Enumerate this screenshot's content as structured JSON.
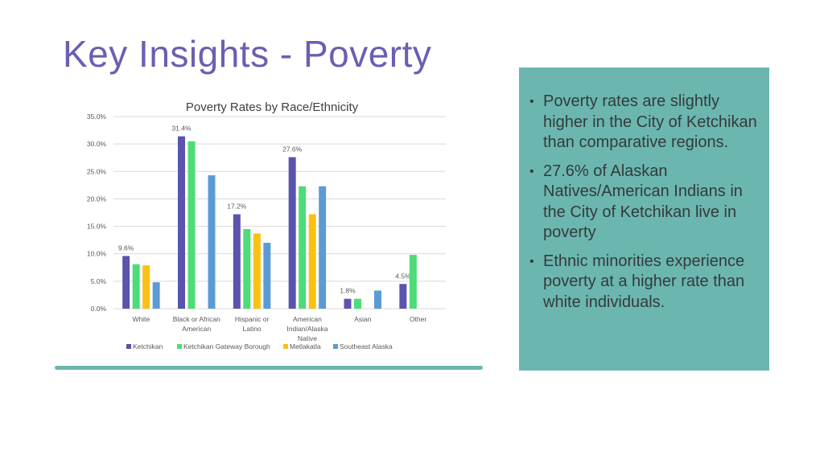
{
  "slide": {
    "title": "Key Insights - Poverty"
  },
  "insights": [
    "Poverty rates are slightly higher in the City of Ketchikan than comparative regions.",
    "27.6% of Alaskan Natives/American Indians in the City of Ketchikan live in poverty",
    "Ethnic minorities experience poverty at a higher rate than white individuals."
  ],
  "colors": {
    "title": "#6a5fb1",
    "panel": "#6cb6b0",
    "bar_accent": "#6cb6b0"
  },
  "chart_data": {
    "type": "bar",
    "title": "Poverty Rates by Race/Ethnicity",
    "xlabel": "",
    "ylabel": "",
    "ylim": [
      0,
      35
    ],
    "yticks": [
      "0.0%",
      "5.0%",
      "10.0%",
      "15.0%",
      "20.0%",
      "25.0%",
      "30.0%",
      "35.0%"
    ],
    "grid": true,
    "legend_position": "bottom",
    "categories": [
      [
        "White"
      ],
      [
        "Black or African",
        "American"
      ],
      [
        "Hispanic or",
        "Latino"
      ],
      [
        "American",
        "Indian/Alaska",
        "Native"
      ],
      [
        "Asian"
      ],
      [
        "Other"
      ]
    ],
    "series": [
      {
        "name": "Ketchikan",
        "color": "#5b54ad",
        "values": [
          9.6,
          31.4,
          17.2,
          27.6,
          1.8,
          4.5
        ],
        "labels": [
          "9.6%",
          "31.4%",
          "17.2%",
          "27.6%",
          "1.8%",
          "4.5%"
        ]
      },
      {
        "name": "Ketchikan Gateway Borough",
        "color": "#4ddc78",
        "values": [
          8.1,
          30.5,
          14.5,
          22.3,
          1.8,
          9.8
        ],
        "labels": [
          "",
          "",
          "",
          "",
          "",
          ""
        ]
      },
      {
        "name": "Metlakatla",
        "color": "#fbc012",
        "values": [
          7.9,
          0,
          13.7,
          17.2,
          0,
          0
        ],
        "labels": [
          "",
          "",
          "",
          "",
          "",
          ""
        ]
      },
      {
        "name": "Southeast Alaska",
        "color": "#5b9bd5",
        "values": [
          4.8,
          24.3,
          12.0,
          22.3,
          3.3,
          0
        ],
        "labels": [
          "",
          "",
          "",
          "",
          "",
          ""
        ]
      }
    ]
  }
}
